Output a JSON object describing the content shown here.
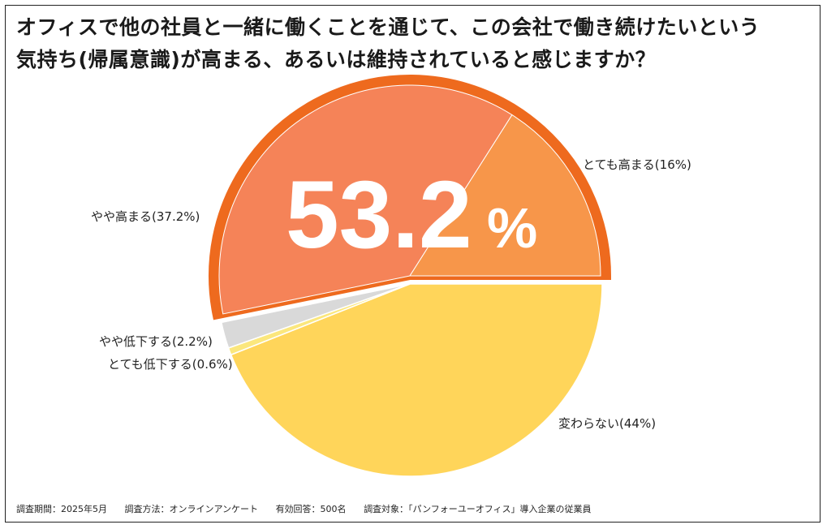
{
  "chart_data": {
    "type": "pie",
    "title_lines": [
      "オフィスで他の社員と一緒に働くことを通じて、この会社で働き続けたいという",
      "気持ち(帰属意識)が高まる、あるいは維持されていると感じますか？"
    ],
    "slices": [
      {
        "label": "とても高まる(16%)",
        "value": 16,
        "color": "#F7964A"
      },
      {
        "label": "やや高まる(37.2%)",
        "value": 37.2,
        "color": "#F58358"
      },
      {
        "label": "やや低下する(2.2%)",
        "value": 2.2,
        "color": "#D9D9D9"
      },
      {
        "label": "とても低下する(0.6%)",
        "value": 0.6,
        "color": "#FBE77D"
      },
      {
        "label": "変わらない(44%)",
        "value": 44,
        "color": "#FFD55A"
      }
    ],
    "highlight": {
      "value_text": "53.2",
      "unit": "%",
      "outline_color": "#EE6A1E"
    }
  },
  "footer": {
    "period": "調査期間：2025年5月",
    "method": "調査方法：オンラインアンケート",
    "responses": "有効回答：500名",
    "target": "調査対象：「パンフォーユーオフィス」導入企業の従業員"
  }
}
